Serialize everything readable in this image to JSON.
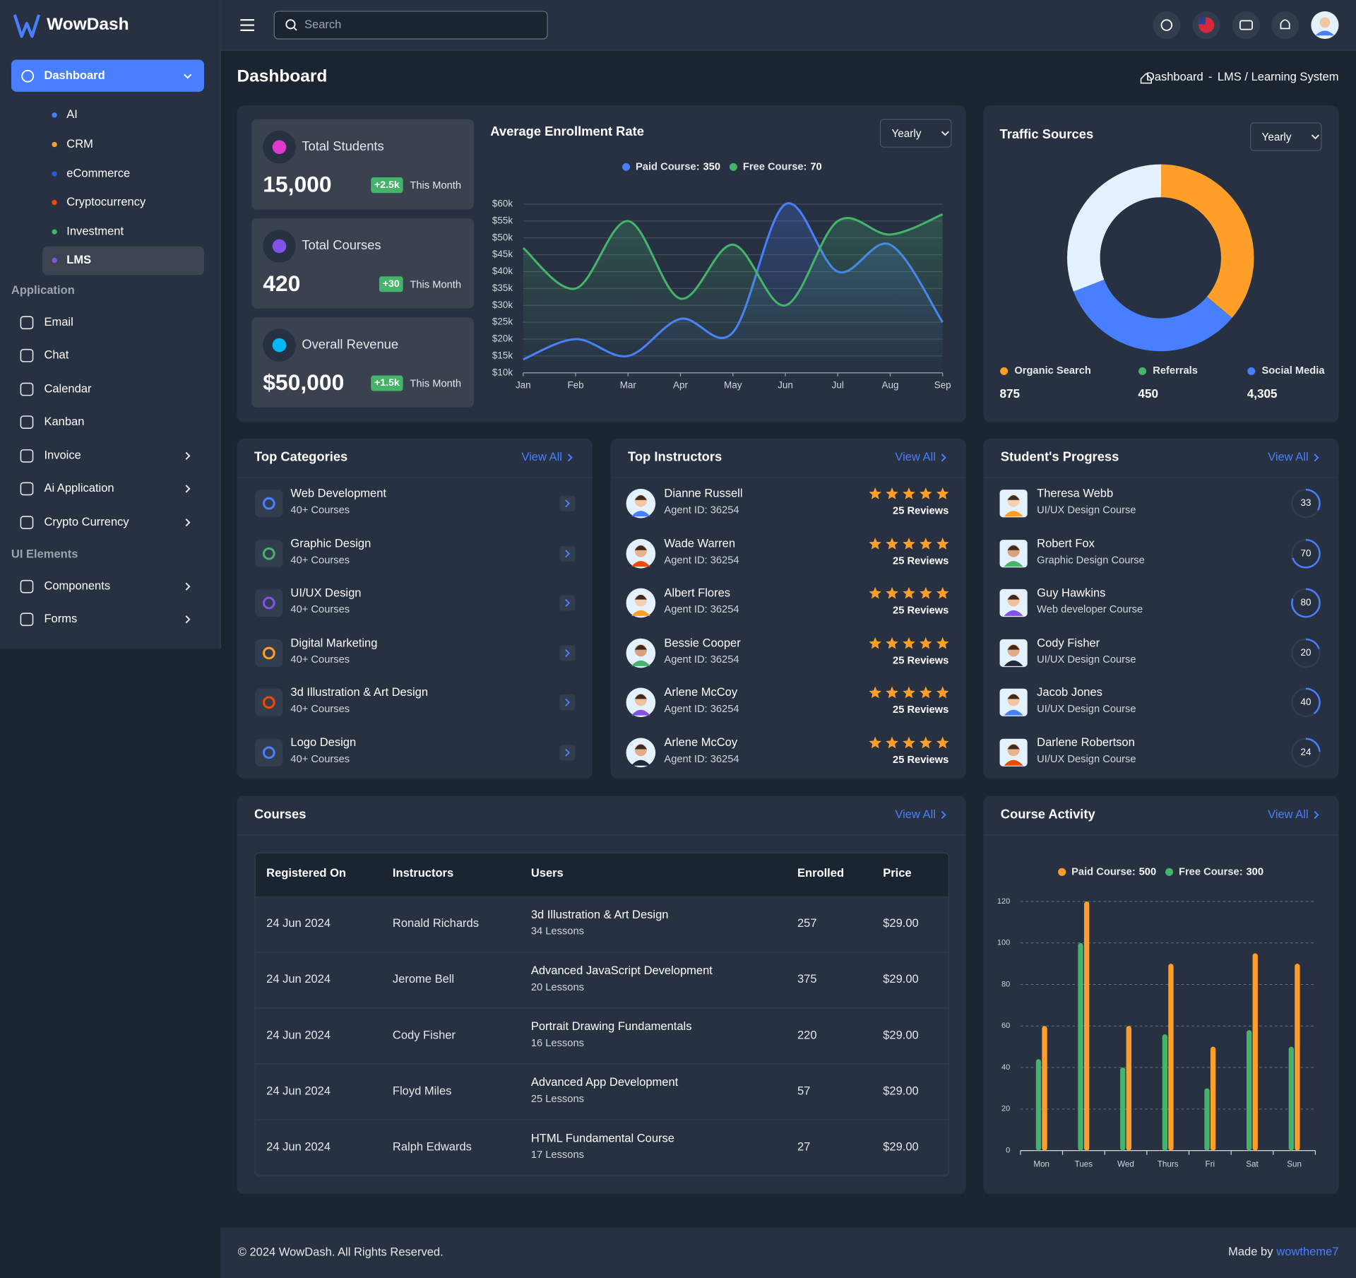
{
  "app": {
    "brand": "WowDash",
    "search_placeholder": "Search"
  },
  "sidebar": {
    "main": "Dashboard",
    "submenu": [
      {
        "label": "AI",
        "color": "#487fff"
      },
      {
        "label": "CRM",
        "color": "#ff9f29"
      },
      {
        "label": "eCommerce",
        "color": "#2a5bd7"
      },
      {
        "label": "Cryptocurrency",
        "color": "#ef4a00"
      },
      {
        "label": "Investment",
        "color": "#45b369"
      },
      {
        "label": "LMS",
        "color": "#8252e9",
        "active": true
      }
    ],
    "sections": [
      {
        "title": "Application",
        "items": [
          {
            "label": "Email"
          },
          {
            "label": "Chat"
          },
          {
            "label": "Calendar"
          },
          {
            "label": "Kanban"
          },
          {
            "label": "Invoice",
            "has_submenu": true
          },
          {
            "label": "Ai Application",
            "has_submenu": true
          },
          {
            "label": "Crypto Currency",
            "has_submenu": true
          }
        ]
      },
      {
        "title": "UI Elements",
        "items": [
          {
            "label": "Components",
            "has_submenu": true
          },
          {
            "label": "Forms",
            "has_submenu": true
          }
        ]
      }
    ]
  },
  "page": {
    "title": "Dashboard",
    "breadcrumb": {
      "home": "Dashboard",
      "separator": "-",
      "current": "LMS / Learning System"
    }
  },
  "stats": [
    {
      "label": "Total Students",
      "value": "15,000",
      "change": "+2.5k",
      "period": "This Month",
      "color": "#de3ace"
    },
    {
      "label": "Total Courses",
      "value": "420",
      "change": "+30",
      "period": "This Month",
      "color": "#8252e9"
    },
    {
      "label": "Overall Revenue",
      "value": "$50,000",
      "change": "+1.5k",
      "period": "This Month",
      "color": "#00b8f2"
    }
  ],
  "chart_data": [
    {
      "type": "line",
      "title": "Average Enrollment Rate",
      "filter": "Yearly",
      "categories": [
        "Jan",
        "Feb",
        "Mar",
        "Apr",
        "May",
        "Jun",
        "Jul",
        "Aug",
        "Sep"
      ],
      "series": [
        {
          "name": "Paid Course:",
          "total": 350,
          "color": "#487fff",
          "values": [
            14000,
            20000,
            15000,
            26000,
            22000,
            60000,
            40000,
            48000,
            25000
          ]
        },
        {
          "name": "Free Course:",
          "total": 70,
          "color": "#45b369",
          "values": [
            47000,
            35000,
            55000,
            32000,
            48000,
            30000,
            55000,
            51000,
            57000
          ]
        }
      ],
      "ylim": [
        10000,
        60000
      ],
      "yticks": [
        {
          "value": 10000,
          "label": "$10k"
        },
        {
          "value": 15000,
          "label": "$15k"
        },
        {
          "value": 20000,
          "label": "$20k"
        },
        {
          "value": 25000,
          "label": "$25k"
        },
        {
          "value": 30000,
          "label": "$30k"
        },
        {
          "value": 35000,
          "label": "$35k"
        },
        {
          "value": 40000,
          "label": "$40k"
        },
        {
          "value": 45000,
          "label": "$45k"
        },
        {
          "value": 50000,
          "label": "$50k"
        },
        {
          "value": 55000,
          "label": "$55k"
        },
        {
          "value": 60000,
          "label": "$60k"
        }
      ],
      "grid": true
    },
    {
      "type": "donut",
      "title": "Traffic Sources",
      "filter": "Yearly",
      "categories": [
        "Organic Search",
        "Referrals",
        "Social Media"
      ],
      "values": [
        36,
        31,
        33
      ],
      "colors": [
        "#ff9f29",
        "#45b369",
        "#487fff"
      ],
      "segment_colors": [
        "#ff9f29",
        "#e4f1ff",
        "#487fff"
      ],
      "legend_values": [
        "875",
        "450",
        "4,305"
      ]
    },
    {
      "type": "bar",
      "title": "Course Activity",
      "view_all": "View All",
      "categories": [
        "Mon",
        "Tues",
        "Wed",
        "Thurs",
        "Fri",
        "Sat",
        "Sun"
      ],
      "series": [
        {
          "name": "Paid Course:",
          "total": 500,
          "color": "#ff9f29",
          "values": [
            60,
            120,
            60,
            90,
            50,
            95,
            90
          ]
        },
        {
          "name": "Free Course:",
          "total": 300,
          "color": "#45b369",
          "values": [
            44,
            100,
            40,
            56,
            30,
            58,
            50
          ]
        }
      ],
      "ylim": [
        0,
        120
      ],
      "yticks": [
        0,
        20,
        40,
        60,
        80,
        100,
        120
      ],
      "grid": true
    }
  ],
  "top_categories": {
    "title": "Top Categories",
    "view_all": "View All",
    "items": [
      {
        "name": "Web Development",
        "courses": "40+ Courses",
        "color": "#487fff"
      },
      {
        "name": "Graphic Design",
        "courses": "40+ Courses",
        "color": "#45b369"
      },
      {
        "name": "UI/UX Design",
        "courses": "40+ Courses",
        "color": "#8252e9"
      },
      {
        "name": "Digital Marketing",
        "courses": "40+ Courses",
        "color": "#ff9f29"
      },
      {
        "name": "3d Illustration & Art Design",
        "courses": "40+ Courses",
        "color": "#ef4a00"
      },
      {
        "name": "Logo Design",
        "courses": "40+ Courses",
        "color": "#487fff"
      }
    ]
  },
  "top_instructors": {
    "title": "Top Instructors",
    "view_all": "View All",
    "items": [
      {
        "name": "Dianne Russell",
        "agent_id": "Agent ID: 36254",
        "reviews": "25 Reviews",
        "rating": 5
      },
      {
        "name": "Wade Warren",
        "agent_id": "Agent ID: 36254",
        "reviews": "25 Reviews",
        "rating": 5
      },
      {
        "name": "Albert Flores",
        "agent_id": "Agent ID: 36254",
        "reviews": "25 Reviews",
        "rating": 5
      },
      {
        "name": "Bessie Cooper",
        "agent_id": "Agent ID: 36254",
        "reviews": "25 Reviews",
        "rating": 5
      },
      {
        "name": "Arlene McCoy",
        "agent_id": "Agent ID: 36254",
        "reviews": "25 Reviews",
        "rating": 5
      },
      {
        "name": "Arlene McCoy",
        "agent_id": "Agent ID: 36254",
        "reviews": "25 Reviews",
        "rating": 5
      }
    ]
  },
  "student_progress": {
    "title": "Student's Progress",
    "view_all": "View All",
    "items": [
      {
        "name": "Theresa Webb",
        "course": "UI/UX Design Course",
        "progress": 33
      },
      {
        "name": "Robert Fox",
        "course": "Graphic Design Course",
        "progress": 70
      },
      {
        "name": "Guy Hawkins",
        "course": "Web developer Course",
        "progress": 80
      },
      {
        "name": "Cody Fisher",
        "course": "UI/UX Design Course",
        "progress": 20
      },
      {
        "name": "Jacob Jones",
        "course": "UI/UX Design Course",
        "progress": 40
      },
      {
        "name": "Darlene Robertson",
        "course": "UI/UX Design Course",
        "progress": 24
      }
    ]
  },
  "courses": {
    "title": "Courses",
    "view_all": "View All",
    "columns": [
      "Registered On",
      "Instructors",
      "Users",
      "Enrolled",
      "Price"
    ],
    "rows": [
      {
        "registered": "24 Jun 2024",
        "instructor": "Ronald Richards",
        "course": "3d Illustration & Art Design",
        "lessons": "34 Lessons",
        "enrolled": 257,
        "price": "$29.00"
      },
      {
        "registered": "24 Jun 2024",
        "instructor": "Jerome Bell",
        "course": "Advanced JavaScript Development",
        "lessons": "20 Lessons",
        "enrolled": 375,
        "price": "$29.00"
      },
      {
        "registered": "24 Jun 2024",
        "instructor": "Cody Fisher",
        "course": "Portrait Drawing Fundamentals",
        "lessons": "16 Lessons",
        "enrolled": 220,
        "price": "$29.00"
      },
      {
        "registered": "24 Jun 2024",
        "instructor": "Floyd Miles",
        "course": "Advanced App Development",
        "lessons": "25 Lessons",
        "enrolled": 57,
        "price": "$29.00"
      },
      {
        "registered": "24 Jun 2024",
        "instructor": "Ralph Edwards",
        "course": "HTML Fundamental Course",
        "lessons": "17 Lessons",
        "enrolled": 27,
        "price": "$29.00"
      }
    ]
  },
  "footer": {
    "copyright": "© 2024 WowDash. All Rights Reserved.",
    "made_by": "Made by",
    "author": "wowtheme7"
  }
}
